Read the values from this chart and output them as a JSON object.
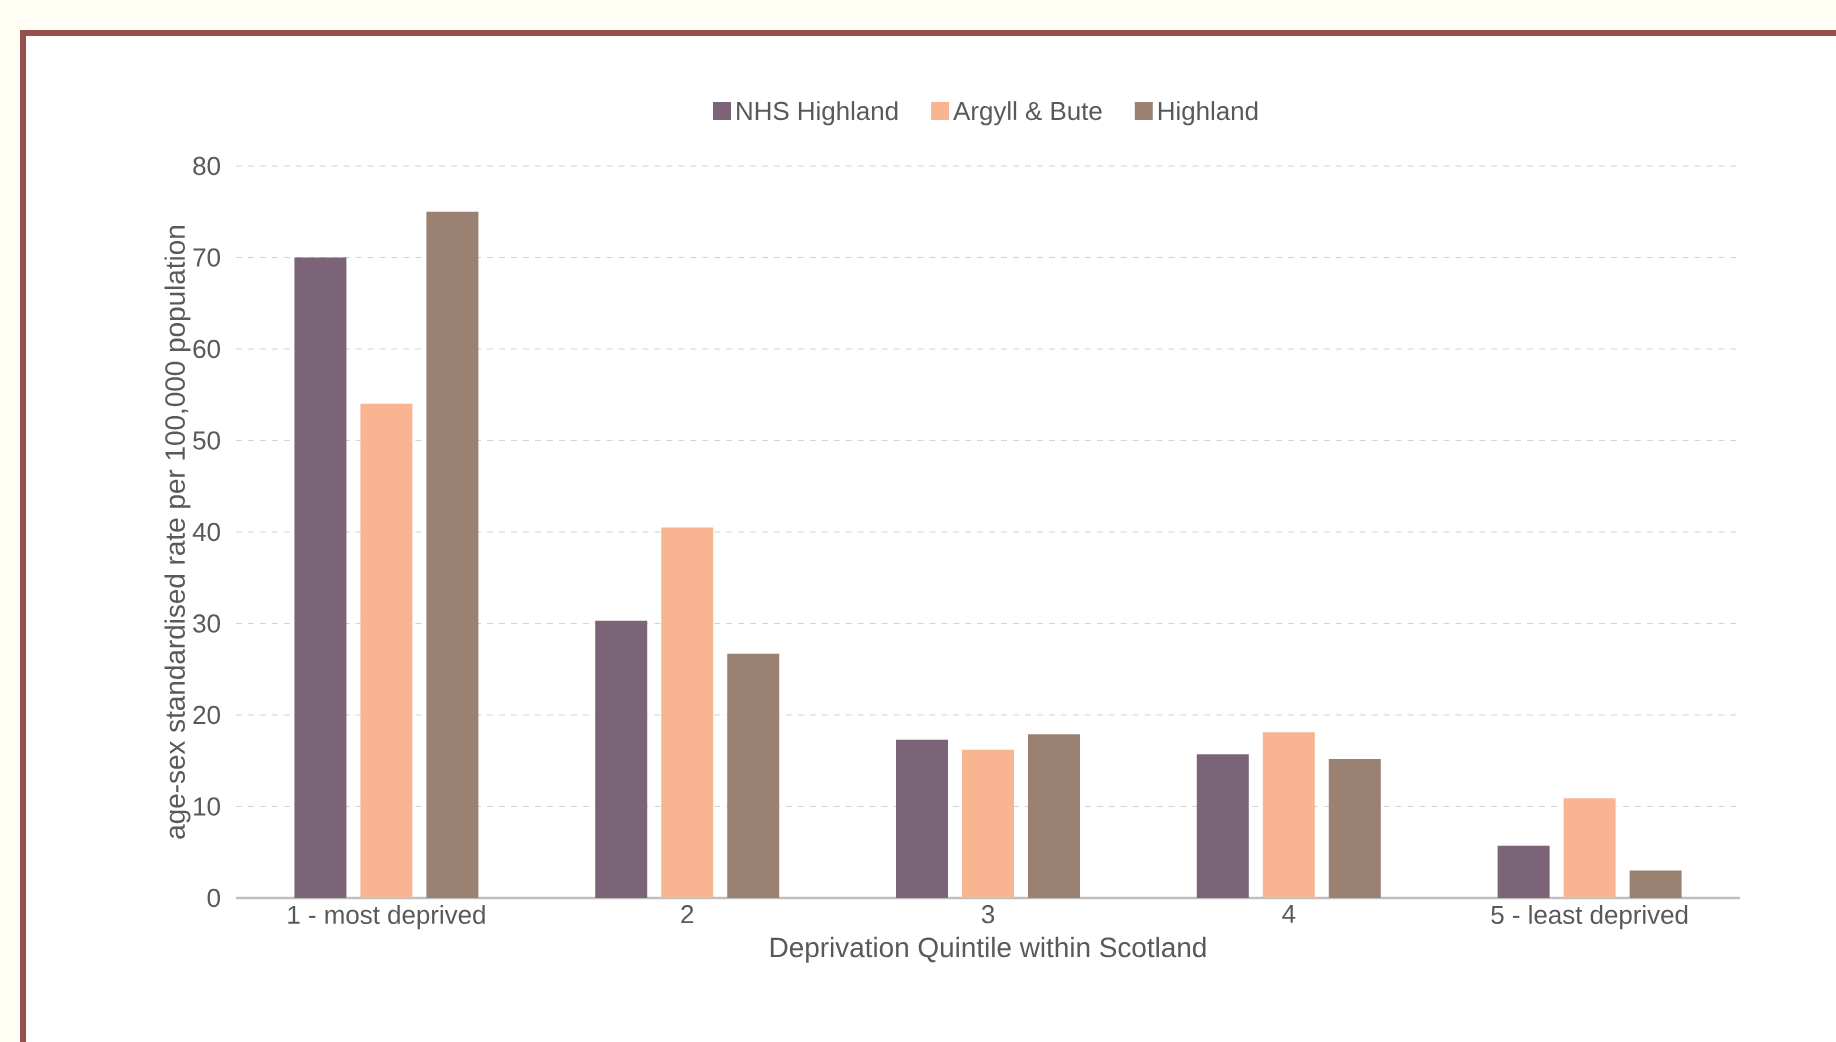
{
  "chart_data": {
    "type": "bar",
    "xlabel": "Deprivation Quintile within Scotland",
    "ylabel": "age-sex standardised rate per 100,000 population",
    "categories": [
      "1 - most deprived",
      "2",
      "3",
      "4",
      "5 - least deprived"
    ],
    "series": [
      {
        "name": "NHS Highland",
        "color": "#7b6477",
        "values": [
          70,
          30.3,
          17.3,
          15.7,
          5.7
        ]
      },
      {
        "name": "Argyll & Bute",
        "color": "#f9b591",
        "values": [
          54,
          40.5,
          16.2,
          18.1,
          10.9
        ]
      },
      {
        "name": "Highland",
        "color": "#9b8172",
        "values": [
          75,
          26.7,
          17.9,
          15.2,
          3.0
        ]
      }
    ],
    "ylim": [
      0,
      80
    ],
    "yticks": [
      0,
      10,
      20,
      30,
      40,
      50,
      60,
      70,
      80
    ],
    "grid": "y",
    "legend": "top"
  }
}
